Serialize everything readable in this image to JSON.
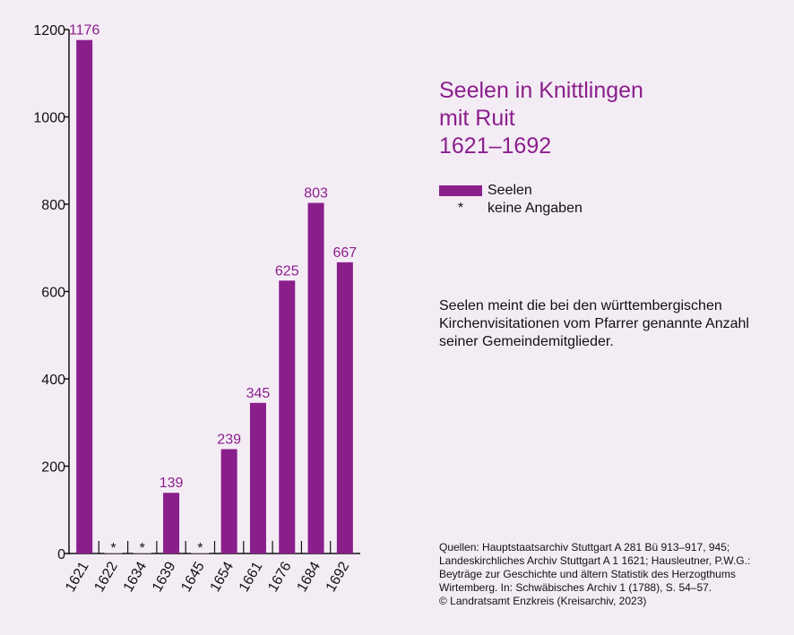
{
  "title_lines": [
    "Seelen in Knittlingen",
    "mit Ruit",
    "1621–1692"
  ],
  "legend": {
    "bar_label": "Seelen",
    "missing_symbol": "*",
    "missing_label": "keine Angaben"
  },
  "note": "Seelen meint die bei den württembergischen Kirchenvisitationen vom Pfarrer genannte Anzahl seiner Gemeindemitglieder.",
  "sources_lines": [
    "Quellen: Hauptstaatsarchiv Stuttgart A 281 Bü 913–917, 945;",
    "Landeskirchliches Archiv Stuttgart A 1 1621; Hausleutner, P.W.G.:",
    "Beyträge zur Geschichte und ältern Statistik des Herzogthums",
    "Wirtemberg. In: Schwäbisches Archiv 1 (1788), S. 54–57.",
    "© Landratsamt Enzkreis (Kreisarchiv, 2023)"
  ],
  "colors": {
    "bar": "#8a1f8c",
    "value_label": "#8a1f8c",
    "background": "#f4ecf5"
  },
  "chart_data": {
    "type": "bar",
    "categories": [
      "1621",
      "1622",
      "1634",
      "1639",
      "1645",
      "1654",
      "1661",
      "1676",
      "1684",
      "1692"
    ],
    "values": [
      1176,
      null,
      null,
      139,
      null,
      239,
      345,
      625,
      803,
      667
    ],
    "missing_marker": "*",
    "ylim": [
      0,
      1200
    ],
    "yticks": [
      0,
      200,
      400,
      600,
      800,
      1000,
      1200
    ],
    "grid": false,
    "legend_position": "right",
    "series": [
      {
        "name": "Seelen",
        "values": [
          1176,
          null,
          null,
          139,
          null,
          239,
          345,
          625,
          803,
          667
        ]
      }
    ]
  }
}
